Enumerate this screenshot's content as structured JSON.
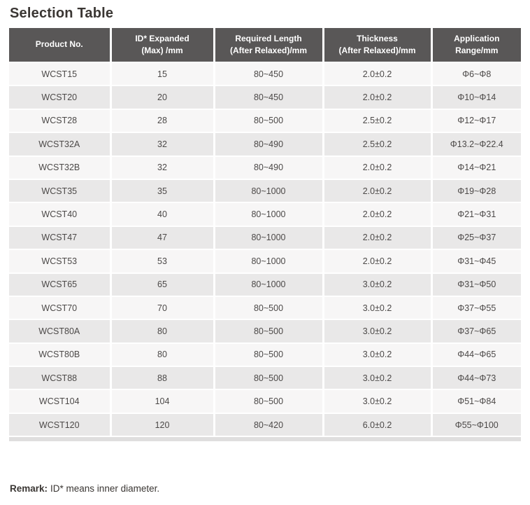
{
  "page": {
    "title": "Selection Table",
    "remark": {
      "label": "Remark:",
      "text": "ID* means inner diameter."
    }
  },
  "table": {
    "headers": [
      "Product No.",
      "ID* Expanded\n(Max) /mm",
      "Required Length\n(After Relaxed)/mm",
      "Thickness\n(After Relaxed)/mm",
      "Application\nRange/mm"
    ],
    "rows": [
      [
        "WCST15",
        "15",
        "80~450",
        "2.0±0.2",
        "Φ6~Φ8"
      ],
      [
        "WCST20",
        "20",
        "80~450",
        "2.0±0.2",
        "Φ10~Φ14"
      ],
      [
        "WCST28",
        "28",
        "80~500",
        "2.5±0.2",
        "Φ12~Φ17"
      ],
      [
        "WCST32A",
        "32",
        "80~490",
        "2.5±0.2",
        "Φ13.2~Φ22.4"
      ],
      [
        "WCST32B",
        "32",
        "80~490",
        "2.0±0.2",
        "Φ14~Φ21"
      ],
      [
        "WCST35",
        "35",
        "80~1000",
        "2.0±0.2",
        "Φ19~Φ28"
      ],
      [
        "WCST40",
        "40",
        "80~1000",
        "2.0±0.2",
        "Φ21~Φ31"
      ],
      [
        "WCST47",
        "47",
        "80~1000",
        "2.0±0.2",
        "Φ25~Φ37"
      ],
      [
        "WCST53",
        "53",
        "80~1000",
        "2.0±0.2",
        "Φ31~Φ45"
      ],
      [
        "WCST65",
        "65",
        "80~1000",
        "3.0±0.2",
        "Φ31~Φ50"
      ],
      [
        "WCST70",
        "70",
        "80~500",
        "3.0±0.2",
        "Φ37~Φ55"
      ],
      [
        "WCST80A",
        "80",
        "80~500",
        "3.0±0.2",
        "Φ37~Φ65"
      ],
      [
        "WCST80B",
        "80",
        "80~500",
        "3.0±0.2",
        "Φ44~Φ65"
      ],
      [
        "WCST88",
        "88",
        "80~500",
        "3.0±0.2",
        "Φ44~Φ73"
      ],
      [
        "WCST104",
        "104",
        "80~500",
        "3.0±0.2",
        "Φ51~Φ84"
      ],
      [
        "WCST120",
        "120",
        "80~420",
        "6.0±0.2",
        "Φ55~Φ100"
      ]
    ]
  },
  "colors": {
    "header_bg": "#595757",
    "header_text": "#ffffff",
    "row_light": "#f7f6f6",
    "row_dark": "#e9e8e8",
    "cell_text": "#4c4948",
    "title_text": "#3a3633",
    "bottom_bar": "#dfdede"
  }
}
